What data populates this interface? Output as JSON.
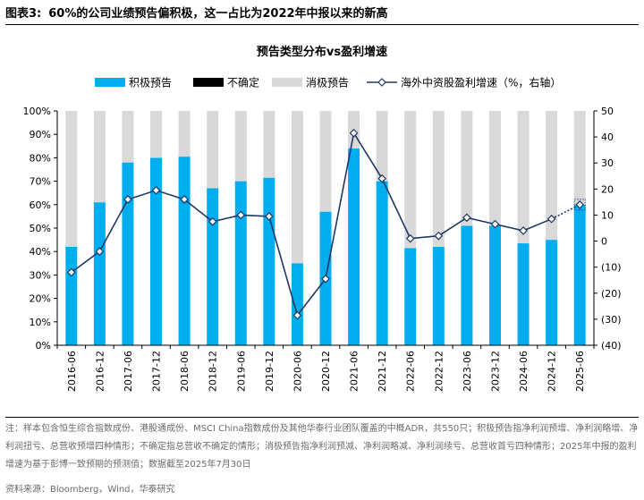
{
  "figure": {
    "label": "图表3:",
    "headline": "60%的公司业绩预告偏积极，这一占比为2022年中报以来的新高"
  },
  "notes": "注：样本包含恒生综合指数成份、港股通成份、MSCI China指数成份及其他华泰行业团队覆盖的中概ADR，共550只；积极预告指净利润预增、净利润略增、净利润扭亏、总营收预增四种情形；不确定指总营收不确定的情形；消极预告指净利润预减、净利润略减、净利润续亏、总营收首亏四种情形；2025年中报的盈利增速为基于彭博一致预期的预测值；数据截至2025年7月30日",
  "source": "资料来源：Bloomberg，Wind，华泰研究",
  "colors": {
    "positive": "#00AEEF",
    "uncertain": "#000000",
    "negative": "#D9D9D9",
    "line": "#1F3864"
  },
  "chart_data": {
    "type": "bar",
    "title": "预告类型分布vs盈利增速",
    "categories": [
      "2016-06",
      "2016-12",
      "2017-06",
      "2017-12",
      "2018-06",
      "2018-12",
      "2019-06",
      "2019-12",
      "2020-06",
      "2020-12",
      "2021-06",
      "2021-12",
      "2022-06",
      "2022-12",
      "2023-06",
      "2023-12",
      "2024-06",
      "2024-12",
      "2025-06"
    ],
    "left_axis": {
      "ticks": [
        "0%",
        "10%",
        "20%",
        "30%",
        "40%",
        "50%",
        "60%",
        "70%",
        "80%",
        "90%",
        "100%"
      ],
      "ylim": [
        0,
        100
      ]
    },
    "right_axis": {
      "ticks": [
        "(40)",
        "(30)",
        "(20)",
        "(10)",
        "0",
        "10",
        "20",
        "30",
        "40",
        "50"
      ],
      "ylim": [
        -40,
        50
      ]
    },
    "series": [
      {
        "name": "积极预告",
        "kind": "bar-stacked",
        "values": [
          42,
          61,
          78,
          80,
          80.5,
          67,
          70,
          71.5,
          35,
          57,
          84,
          70,
          41.5,
          42,
          51,
          51,
          43.5,
          45,
          60
        ]
      },
      {
        "name": "不确定",
        "kind": "bar-stacked",
        "values": [
          0,
          0,
          0,
          0,
          0,
          0,
          0,
          0,
          0,
          0,
          0,
          0,
          0,
          0,
          0,
          0,
          0,
          0,
          0
        ]
      },
      {
        "name": "消极预告",
        "kind": "bar-stacked",
        "values": [
          58,
          39,
          22,
          20,
          19.5,
          33,
          30,
          28.5,
          65,
          43,
          16,
          30,
          58.5,
          58,
          49,
          49,
          56.5,
          55,
          40
        ]
      },
      {
        "name": "海外中资股盈利增速（%，右轴）",
        "kind": "line",
        "axis": "right",
        "values": [
          -12,
          -4,
          16,
          19.5,
          16,
          7.5,
          10,
          9.5,
          -28.5,
          -14.5,
          41.5,
          24,
          1,
          2,
          9,
          6.5,
          4,
          8.5,
          14
        ]
      }
    ],
    "grid": false,
    "legend": "top"
  }
}
